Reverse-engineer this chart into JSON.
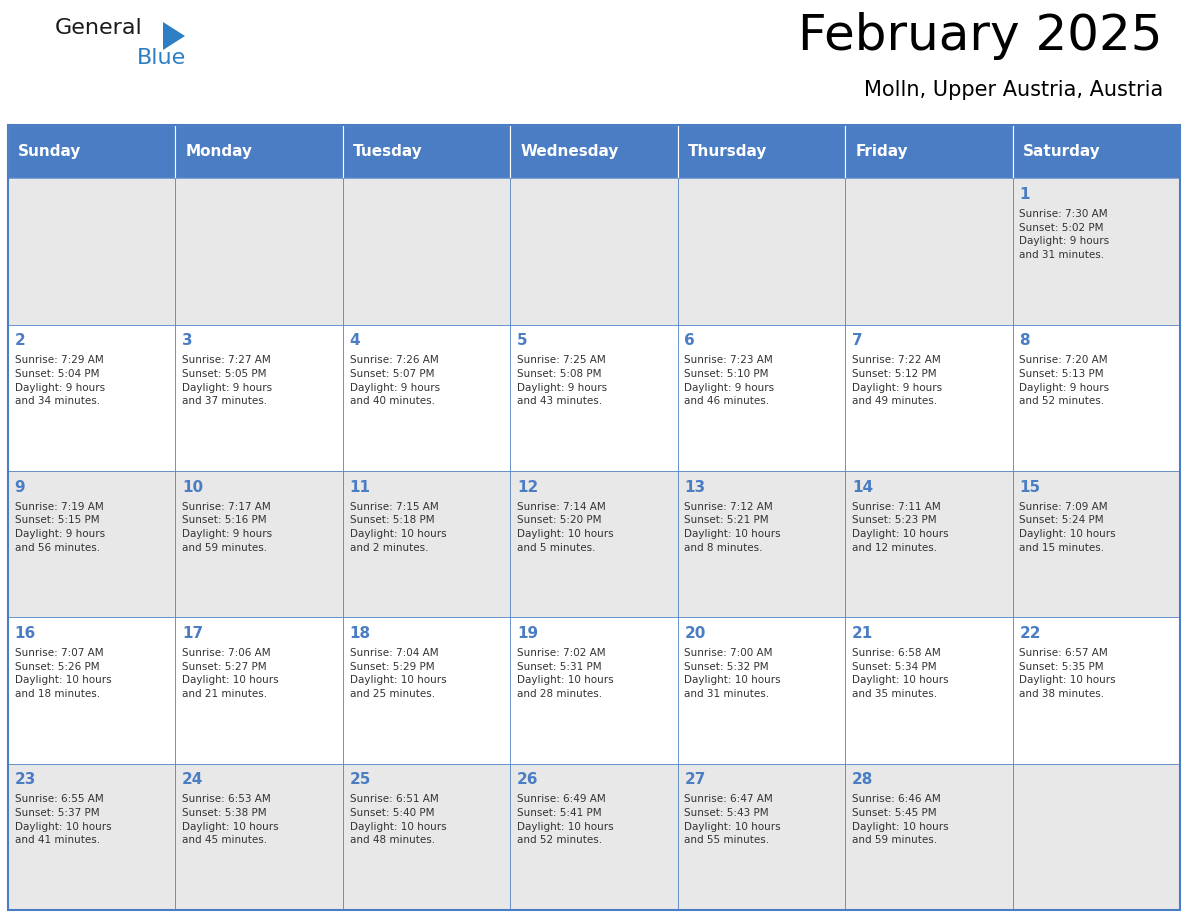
{
  "title": "February 2025",
  "subtitle": "Molln, Upper Austria, Austria",
  "header_bg": "#4a7dc4",
  "header_text": "#FFFFFF",
  "header_days": [
    "Sunday",
    "Monday",
    "Tuesday",
    "Wednesday",
    "Thursday",
    "Friday",
    "Saturday"
  ],
  "row_bg": [
    "#E8E8E8",
    "#FFFFFF"
  ],
  "cell_text": "#333333",
  "day_num_color": "#4a7dc4",
  "border_color": "#4a7dc4",
  "grid_line_color": "#aaaacc",
  "cells": [
    {
      "day": null,
      "col": 0,
      "row": 0,
      "info": null
    },
    {
      "day": null,
      "col": 1,
      "row": 0,
      "info": null
    },
    {
      "day": null,
      "col": 2,
      "row": 0,
      "info": null
    },
    {
      "day": null,
      "col": 3,
      "row": 0,
      "info": null
    },
    {
      "day": null,
      "col": 4,
      "row": 0,
      "info": null
    },
    {
      "day": null,
      "col": 5,
      "row": 0,
      "info": null
    },
    {
      "day": 1,
      "col": 6,
      "row": 0,
      "info": "Sunrise: 7:30 AM\nSunset: 5:02 PM\nDaylight: 9 hours\nand 31 minutes."
    },
    {
      "day": 2,
      "col": 0,
      "row": 1,
      "info": "Sunrise: 7:29 AM\nSunset: 5:04 PM\nDaylight: 9 hours\nand 34 minutes."
    },
    {
      "day": 3,
      "col": 1,
      "row": 1,
      "info": "Sunrise: 7:27 AM\nSunset: 5:05 PM\nDaylight: 9 hours\nand 37 minutes."
    },
    {
      "day": 4,
      "col": 2,
      "row": 1,
      "info": "Sunrise: 7:26 AM\nSunset: 5:07 PM\nDaylight: 9 hours\nand 40 minutes."
    },
    {
      "day": 5,
      "col": 3,
      "row": 1,
      "info": "Sunrise: 7:25 AM\nSunset: 5:08 PM\nDaylight: 9 hours\nand 43 minutes."
    },
    {
      "day": 6,
      "col": 4,
      "row": 1,
      "info": "Sunrise: 7:23 AM\nSunset: 5:10 PM\nDaylight: 9 hours\nand 46 minutes."
    },
    {
      "day": 7,
      "col": 5,
      "row": 1,
      "info": "Sunrise: 7:22 AM\nSunset: 5:12 PM\nDaylight: 9 hours\nand 49 minutes."
    },
    {
      "day": 8,
      "col": 6,
      "row": 1,
      "info": "Sunrise: 7:20 AM\nSunset: 5:13 PM\nDaylight: 9 hours\nand 52 minutes."
    },
    {
      "day": 9,
      "col": 0,
      "row": 2,
      "info": "Sunrise: 7:19 AM\nSunset: 5:15 PM\nDaylight: 9 hours\nand 56 minutes."
    },
    {
      "day": 10,
      "col": 1,
      "row": 2,
      "info": "Sunrise: 7:17 AM\nSunset: 5:16 PM\nDaylight: 9 hours\nand 59 minutes."
    },
    {
      "day": 11,
      "col": 2,
      "row": 2,
      "info": "Sunrise: 7:15 AM\nSunset: 5:18 PM\nDaylight: 10 hours\nand 2 minutes."
    },
    {
      "day": 12,
      "col": 3,
      "row": 2,
      "info": "Sunrise: 7:14 AM\nSunset: 5:20 PM\nDaylight: 10 hours\nand 5 minutes."
    },
    {
      "day": 13,
      "col": 4,
      "row": 2,
      "info": "Sunrise: 7:12 AM\nSunset: 5:21 PM\nDaylight: 10 hours\nand 8 minutes."
    },
    {
      "day": 14,
      "col": 5,
      "row": 2,
      "info": "Sunrise: 7:11 AM\nSunset: 5:23 PM\nDaylight: 10 hours\nand 12 minutes."
    },
    {
      "day": 15,
      "col": 6,
      "row": 2,
      "info": "Sunrise: 7:09 AM\nSunset: 5:24 PM\nDaylight: 10 hours\nand 15 minutes."
    },
    {
      "day": 16,
      "col": 0,
      "row": 3,
      "info": "Sunrise: 7:07 AM\nSunset: 5:26 PM\nDaylight: 10 hours\nand 18 minutes."
    },
    {
      "day": 17,
      "col": 1,
      "row": 3,
      "info": "Sunrise: 7:06 AM\nSunset: 5:27 PM\nDaylight: 10 hours\nand 21 minutes."
    },
    {
      "day": 18,
      "col": 2,
      "row": 3,
      "info": "Sunrise: 7:04 AM\nSunset: 5:29 PM\nDaylight: 10 hours\nand 25 minutes."
    },
    {
      "day": 19,
      "col": 3,
      "row": 3,
      "info": "Sunrise: 7:02 AM\nSunset: 5:31 PM\nDaylight: 10 hours\nand 28 minutes."
    },
    {
      "day": 20,
      "col": 4,
      "row": 3,
      "info": "Sunrise: 7:00 AM\nSunset: 5:32 PM\nDaylight: 10 hours\nand 31 minutes."
    },
    {
      "day": 21,
      "col": 5,
      "row": 3,
      "info": "Sunrise: 6:58 AM\nSunset: 5:34 PM\nDaylight: 10 hours\nand 35 minutes."
    },
    {
      "day": 22,
      "col": 6,
      "row": 3,
      "info": "Sunrise: 6:57 AM\nSunset: 5:35 PM\nDaylight: 10 hours\nand 38 minutes."
    },
    {
      "day": 23,
      "col": 0,
      "row": 4,
      "info": "Sunrise: 6:55 AM\nSunset: 5:37 PM\nDaylight: 10 hours\nand 41 minutes."
    },
    {
      "day": 24,
      "col": 1,
      "row": 4,
      "info": "Sunrise: 6:53 AM\nSunset: 5:38 PM\nDaylight: 10 hours\nand 45 minutes."
    },
    {
      "day": 25,
      "col": 2,
      "row": 4,
      "info": "Sunrise: 6:51 AM\nSunset: 5:40 PM\nDaylight: 10 hours\nand 48 minutes."
    },
    {
      "day": 26,
      "col": 3,
      "row": 4,
      "info": "Sunrise: 6:49 AM\nSunset: 5:41 PM\nDaylight: 10 hours\nand 52 minutes."
    },
    {
      "day": 27,
      "col": 4,
      "row": 4,
      "info": "Sunrise: 6:47 AM\nSunset: 5:43 PM\nDaylight: 10 hours\nand 55 minutes."
    },
    {
      "day": 28,
      "col": 5,
      "row": 4,
      "info": "Sunrise: 6:46 AM\nSunset: 5:45 PM\nDaylight: 10 hours\nand 59 minutes."
    },
    {
      "day": null,
      "col": 6,
      "row": 4,
      "info": null
    }
  ],
  "num_rows": 5,
  "num_cols": 7,
  "logo_general_color": "#1a1a1a",
  "logo_blue_color": "#2E7EC4",
  "logo_triangle_color": "#2E7EC4",
  "fig_width": 11.88,
  "fig_height": 9.18,
  "title_fontsize": 36,
  "subtitle_fontsize": 15,
  "header_fontsize": 11,
  "day_num_fontsize": 11,
  "info_fontsize": 7.5
}
